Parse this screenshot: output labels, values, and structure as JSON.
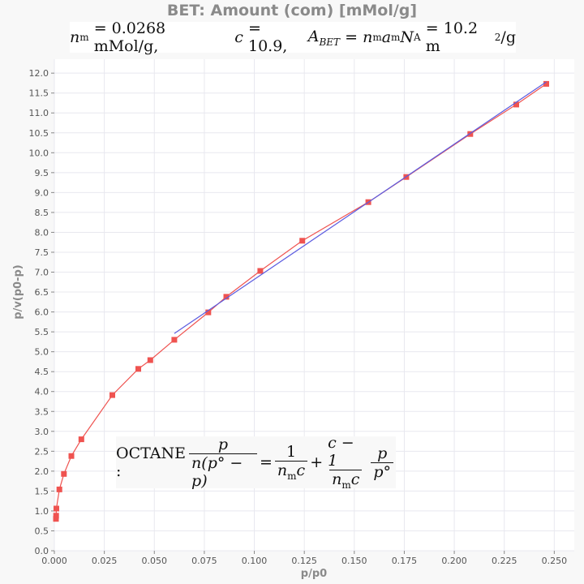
{
  "chart_data": {
    "type": "line",
    "title": "BET: Amount (com) [mMol/g]",
    "subtitle": {
      "nm_value": "= 0.0268 mMol/g,",
      "c_value": "= 10.9,",
      "abet_value": "= 10.2 m",
      "abet_unit_tail": "/g"
    },
    "equation": {
      "label": "OCTANE :",
      "lhs_num": "p",
      "lhs_den": "n(p° − p)",
      "eq1": "=",
      "r1_num": "1",
      "r1_den": "n",
      "plus": "+",
      "r2_num": "c − 1",
      "r2_den": "n",
      "r3_num": "p",
      "r3_den": "p°"
    },
    "xlabel": "p/p0",
    "ylabel": "p/v(p0-p)",
    "xlim": [
      0,
      0.26
    ],
    "ylim": [
      0,
      12.35
    ],
    "xticks": [
      0,
      0.025,
      0.05,
      0.075,
      0.1,
      0.125,
      0.15,
      0.175,
      0.2,
      0.225,
      0.25
    ],
    "xtick_labels": [
      "0.000",
      "0.025",
      "0.050",
      "0.075",
      "0.100",
      "0.125",
      "0.150",
      "0.175",
      "0.200",
      "0.225",
      "0.250"
    ],
    "yticks": [
      0,
      0.5,
      1,
      1.5,
      2,
      2.5,
      3,
      3.5,
      4,
      4.5,
      5,
      5.5,
      6,
      6.5,
      7,
      7.5,
      8,
      8.5,
      9,
      9.5,
      10,
      10.5,
      11,
      11.5,
      12
    ],
    "ytick_labels": [
      "0.0",
      "0.5",
      "1.0",
      "1.5",
      "2.0",
      "2.5",
      "3.0",
      "3.5",
      "4.0",
      "4.5",
      "5.0",
      "5.5",
      "6.0",
      "6.5",
      "7.0",
      "7.5",
      "8.0",
      "8.5",
      "9.0",
      "9.5",
      "10.0",
      "10.5",
      "11.0",
      "11.5",
      "12.0"
    ],
    "grid": true,
    "series": [
      {
        "color": "#ef5350",
        "marker": "square",
        "x": [
          0.0008,
          0.0009,
          0.001,
          0.0025,
          0.0048,
          0.0085,
          0.0135,
          0.029,
          0.042,
          0.048,
          0.06,
          0.077,
          0.086,
          0.103,
          0.124,
          0.157,
          0.176,
          0.208,
          0.231,
          0.246
        ],
        "y": [
          0.8,
          0.88,
          1.06,
          1.54,
          1.93,
          2.38,
          2.8,
          3.91,
          4.57,
          4.79,
          5.3,
          5.99,
          6.38,
          7.03,
          7.79,
          8.76,
          9.39,
          10.47,
          11.21,
          11.73
        ]
      },
      {
        "color": "#5c5ce0",
        "x": [
          0.06,
          0.246
        ],
        "y": [
          5.46,
          11.78
        ]
      }
    ]
  }
}
